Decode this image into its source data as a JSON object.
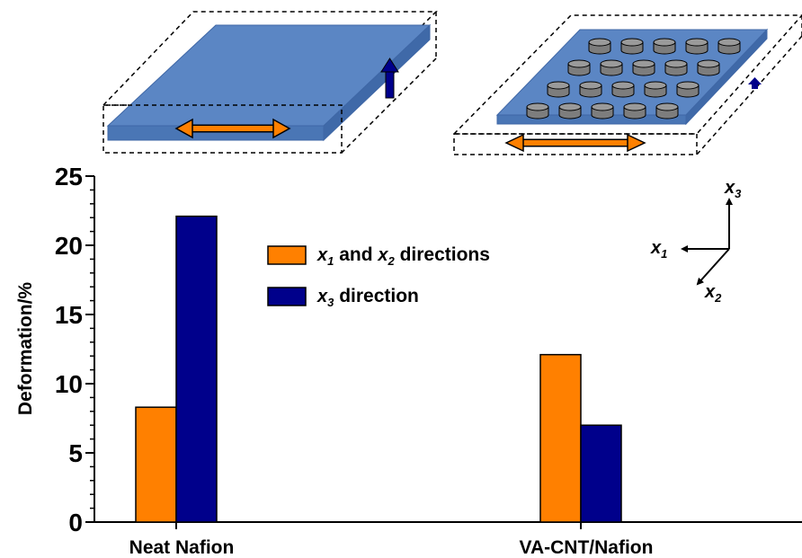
{
  "chart_data": {
    "type": "bar",
    "categories": [
      "Neat Nafion",
      "VA-CNT/Nafion"
    ],
    "series": [
      {
        "name": "x1 and x2 directions",
        "values": [
          8.3,
          12.1
        ],
        "color": "#ff8000"
      },
      {
        "name": "x3 direction",
        "values": [
          22.1,
          7.0
        ],
        "color": "#00008b"
      }
    ],
    "ylabel": "Deformation/%",
    "ylim": [
      0,
      25
    ],
    "yticks": [
      "0",
      "5",
      "10",
      "15",
      "20",
      "25"
    ],
    "grid": false,
    "legend_position": "top-center"
  },
  "legend": [
    {
      "pre": "x",
      "sub": "1",
      "mid": " and ",
      "pre2": "x",
      "sub2": "2",
      "post": " directions"
    },
    {
      "pre": "x",
      "sub": "3",
      "post": " direction"
    }
  ],
  "axes_indicator": [
    {
      "letter": "x",
      "sub": "3"
    },
    {
      "letter": "x",
      "sub": "1"
    },
    {
      "letter": "x",
      "sub": "2"
    }
  ],
  "illustrations": [
    {
      "name": "neat-nafion-membrane",
      "fill": "#5b86c4",
      "arrow_inplane": "#ff8000",
      "arrow_thickness": "#00008b"
    },
    {
      "name": "va-cnt-nafion-membrane",
      "fill": "#5b86c4",
      "pillar_color": "#9a9a9a",
      "pillar_rows": [
        5,
        5,
        5,
        5
      ]
    }
  ]
}
